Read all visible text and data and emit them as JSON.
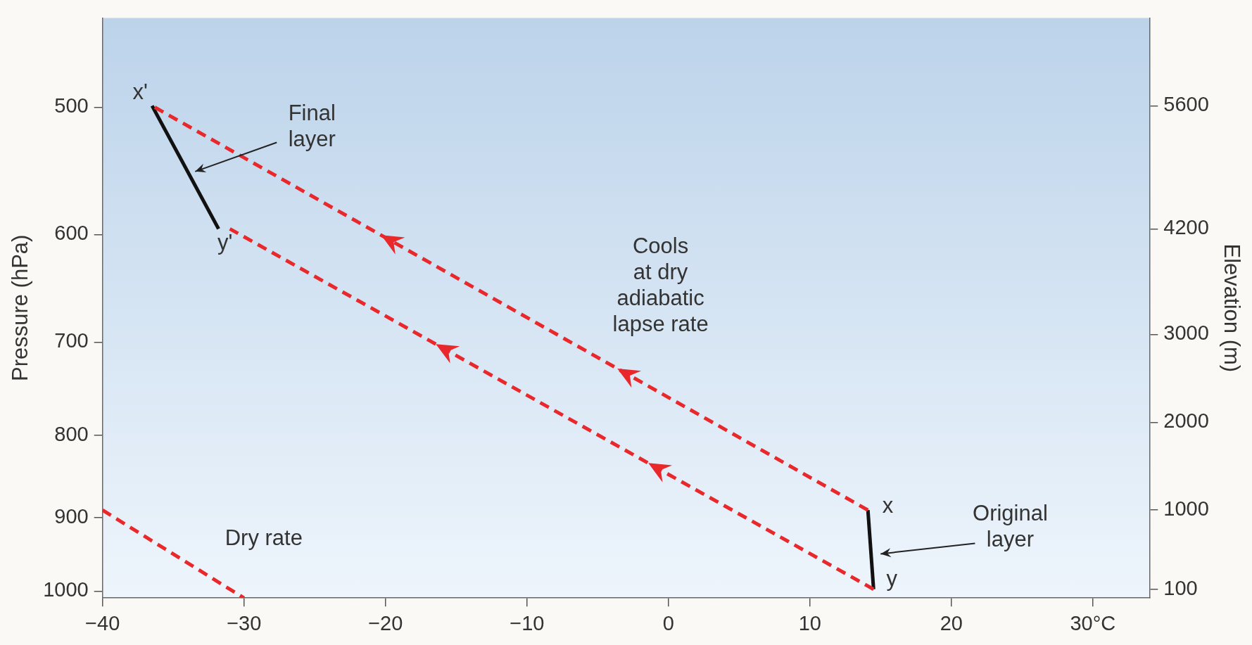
{
  "chart_data": {
    "type": "line",
    "xlabel": null,
    "ylabel": "Pressure (hPa)",
    "y2label": "Elevation (m)",
    "xlim": [
      -40,
      34
    ],
    "xticks": [
      {
        "value": -40,
        "label": "−40"
      },
      {
        "value": -30,
        "label": "−30"
      },
      {
        "value": -20,
        "label": "−20"
      },
      {
        "value": -10,
        "label": "−10"
      },
      0,
      10,
      20,
      {
        "value": 30,
        "label": "30°C"
      }
    ],
    "log": "y",
    "ylim": [
      1010,
      440
    ],
    "yticks": [
      500,
      600,
      700,
      800,
      900,
      1000
    ],
    "y2lim": [
      0,
      6600
    ],
    "y2ticks": [
      100,
      1000,
      2000,
      3000,
      4200,
      5600
    ],
    "series": [
      {
        "color": "#e8282b",
        "line_style": "dashed",
        "axis": "y2",
        "x": [
          14.1,
          -36.5
        ],
        "values": [
          1000,
          5600
        ]
      },
      {
        "color": "#e8282b",
        "line_style": "dashed",
        "axis": "y2",
        "x": [
          14.5,
          -31
        ],
        "values": [
          100,
          4200
        ]
      },
      {
        "color": "#e8282b",
        "line_style": "dashed",
        "axis": "y2",
        "x": [
          -40,
          -30
        ],
        "values": [
          1000,
          0
        ]
      },
      {
        "color": "#111111",
        "line_style": "solid",
        "axis": "y2",
        "x": [
          -36.5,
          -31.8
        ],
        "values": [
          5600,
          4200
        ]
      },
      {
        "color": "#111111",
        "line_style": "solid",
        "axis": "y2",
        "x": [
          14.1,
          14.5
        ],
        "values": [
          1000,
          100
        ]
      }
    ],
    "annotations": [
      "Final\nlayer",
      "Cools\nat dry\nadiabatic\nlapse rate",
      "Original\nlayer",
      "Dry rate",
      "x",
      "y",
      "x'",
      "y'"
    ],
    "grid": false,
    "legend": false,
    "marker": "none"
  }
}
